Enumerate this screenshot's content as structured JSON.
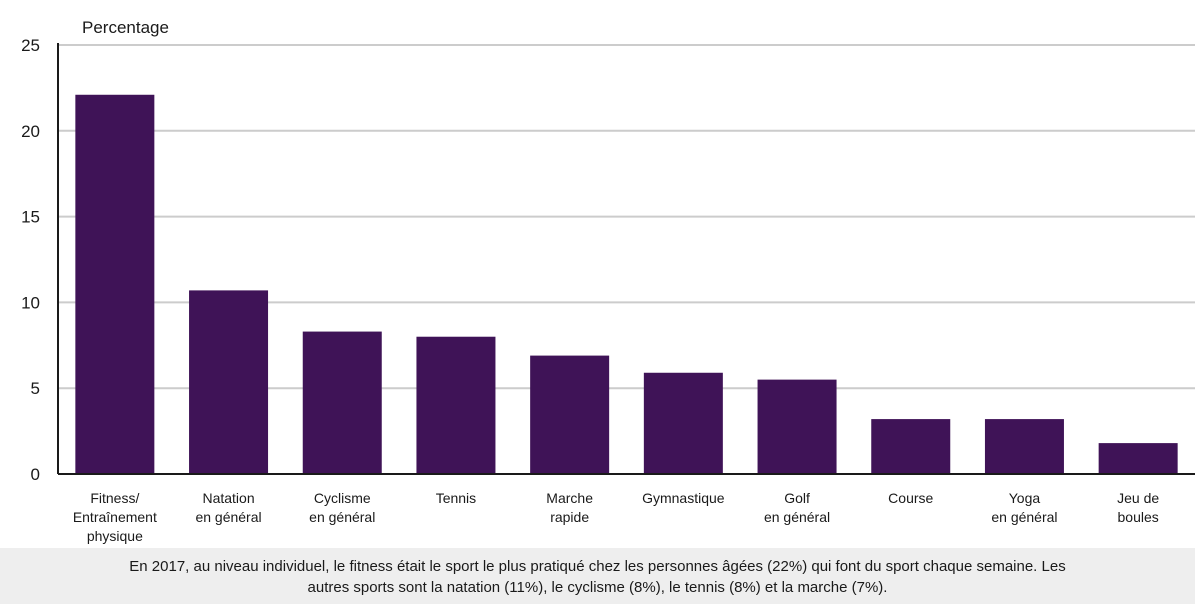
{
  "chart_data": {
    "type": "bar",
    "title": "",
    "ylabel": "Percentage",
    "xlabel": "",
    "ylim": [
      0,
      25
    ],
    "yticks": [
      0,
      5,
      10,
      15,
      20,
      25
    ],
    "grid": true,
    "categories": [
      [
        "Fitness/",
        "Entraînement",
        "physique"
      ],
      [
        "Natation",
        "en général"
      ],
      [
        "Cyclisme",
        "en général"
      ],
      [
        "Tennis"
      ],
      [
        "Marche",
        "rapide"
      ],
      [
        "Gymnastique"
      ],
      [
        "Golf",
        "en général"
      ],
      [
        "Course"
      ],
      [
        "Yoga",
        "en général"
      ],
      [
        "Jeu de",
        "boules"
      ]
    ],
    "values": [
      22.1,
      10.7,
      8.3,
      8.0,
      6.9,
      5.9,
      5.5,
      3.2,
      3.2,
      1.8
    ],
    "bar_color": "#3f1357",
    "grid_color": "#cccccc"
  },
  "caption": {
    "line1": "En 2017, au niveau individuel, le fitness était le sport le plus pratiqué chez les personnes âgées (22%) qui font du sport chaque semaine.  Les",
    "line2": "autres sports sont la natation (11%), le cyclisme (8%), le tennis (8%) et la marche (7%)."
  }
}
